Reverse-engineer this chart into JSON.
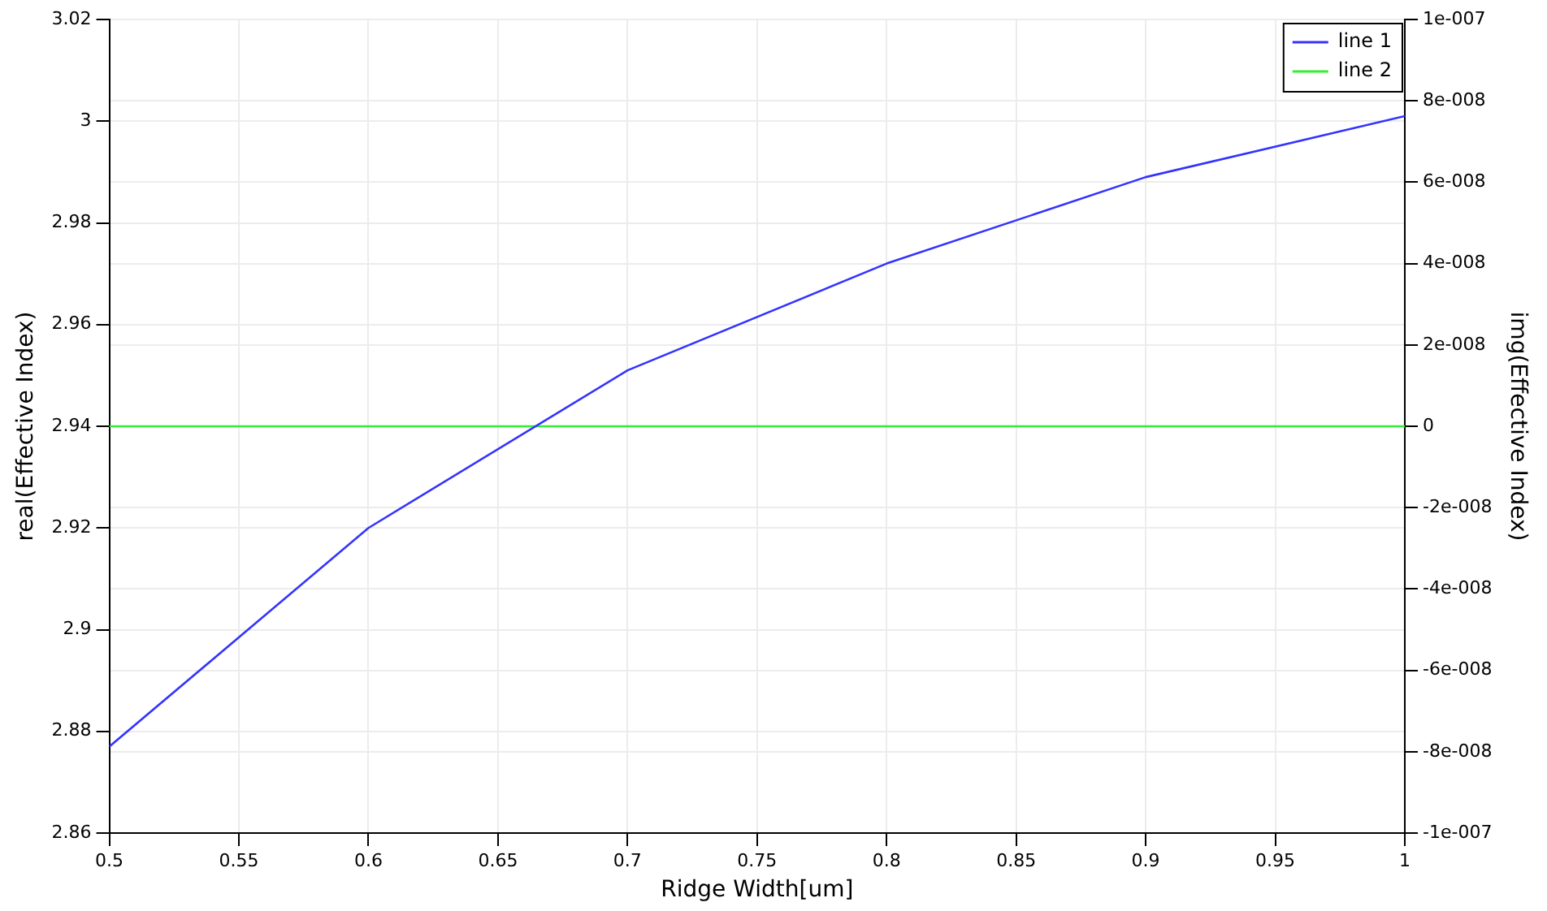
{
  "chart_data": {
    "type": "line",
    "xlabel": "Ridge Width[um]",
    "ylabel": "real(Effective Index)",
    "y2label": "img(Effective Index)",
    "x": [
      0.5,
      0.6,
      0.7,
      0.8,
      0.9,
      1.0
    ],
    "series": [
      {
        "name": "line 1",
        "color": "#3333ff",
        "values": [
          2.877,
          2.92,
          2.951,
          2.972,
          2.989,
          3.001
        ]
      },
      {
        "name": "line 2",
        "color": "#33ee33",
        "axis": "y2",
        "values": [
          0,
          0,
          0,
          0,
          0,
          0
        ]
      }
    ],
    "xlim": [
      0.5,
      1
    ],
    "xticks": [
      0.5,
      0.55,
      0.6,
      0.65,
      0.7,
      0.75,
      0.8,
      0.85,
      0.9,
      0.95,
      1
    ],
    "ylim": [
      2.86,
      3.02
    ],
    "yticks": [
      2.86,
      2.88,
      2.9,
      2.92,
      2.94,
      2.96,
      2.98,
      3,
      3.02
    ],
    "y2lim": [
      -1e-07,
      1e-07
    ],
    "y2ticks": [
      {
        "value": -1e-07,
        "label": "-1e-007"
      },
      {
        "value": -8e-08,
        "label": "-8e-008"
      },
      {
        "value": -6e-08,
        "label": "-6e-008"
      },
      {
        "value": -4e-08,
        "label": "-4e-008"
      },
      {
        "value": -2e-08,
        "label": "-2e-008"
      },
      0,
      {
        "value": 2e-08,
        "label": "2e-008"
      },
      {
        "value": 4e-08,
        "label": "4e-008"
      },
      {
        "value": 6e-08,
        "label": "6e-008"
      },
      {
        "value": 8e-08,
        "label": "8e-008"
      },
      {
        "value": 1e-07,
        "label": "1e-007"
      }
    ],
    "grid": true,
    "legend": "top right",
    "marker": "none",
    "line_style": "solid"
  }
}
